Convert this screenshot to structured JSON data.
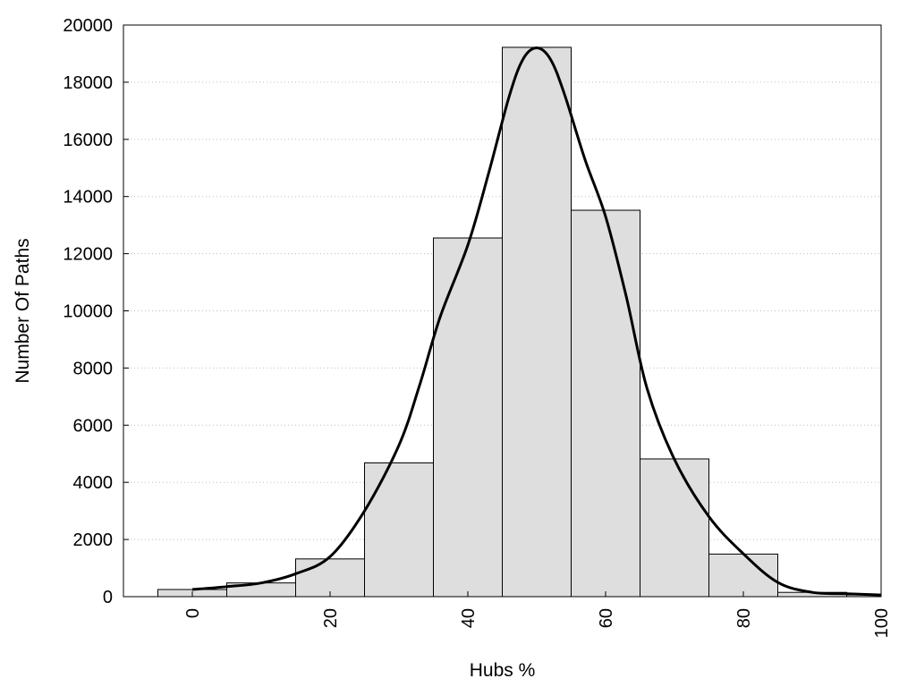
{
  "chart_data": {
    "type": "bar",
    "xlabel": "Hubs %",
    "ylabel": "Number Of Paths",
    "xlim": [
      -10,
      100
    ],
    "ylim": [
      0,
      20000
    ],
    "xticks": [
      0,
      20,
      40,
      60,
      80,
      100
    ],
    "yticks": [
      0,
      2000,
      4000,
      6000,
      8000,
      10000,
      12000,
      14000,
      16000,
      18000,
      20000
    ],
    "grid": "horizontal dotted",
    "bin_width": 10,
    "bins": [
      {
        "center": 0,
        "value": 250
      },
      {
        "center": 10,
        "value": 480
      },
      {
        "center": 20,
        "value": 1320
      },
      {
        "center": 30,
        "value": 4680
      },
      {
        "center": 40,
        "value": 12550
      },
      {
        "center": 50,
        "value": 19220
      },
      {
        "center": 60,
        "value": 13520
      },
      {
        "center": 70,
        "value": 4820
      },
      {
        "center": 80,
        "value": 1490
      },
      {
        "center": 90,
        "value": 150
      },
      {
        "center": 100,
        "value": 60
      }
    ],
    "density_curve": {
      "x": [
        0,
        5,
        10,
        15,
        20,
        25,
        30,
        33,
        36,
        40,
        43,
        46,
        48,
        50,
        52,
        54,
        57,
        60,
        63,
        66,
        70,
        75,
        80,
        85,
        90,
        95,
        100
      ],
      "y": [
        250,
        350,
        480,
        800,
        1400,
        3000,
        5300,
        7400,
        9800,
        12300,
        14800,
        17500,
        18800,
        19200,
        18800,
        17600,
        15300,
        13300,
        10500,
        7300,
        4800,
        2800,
        1500,
        500,
        150,
        100,
        60
      ]
    }
  }
}
